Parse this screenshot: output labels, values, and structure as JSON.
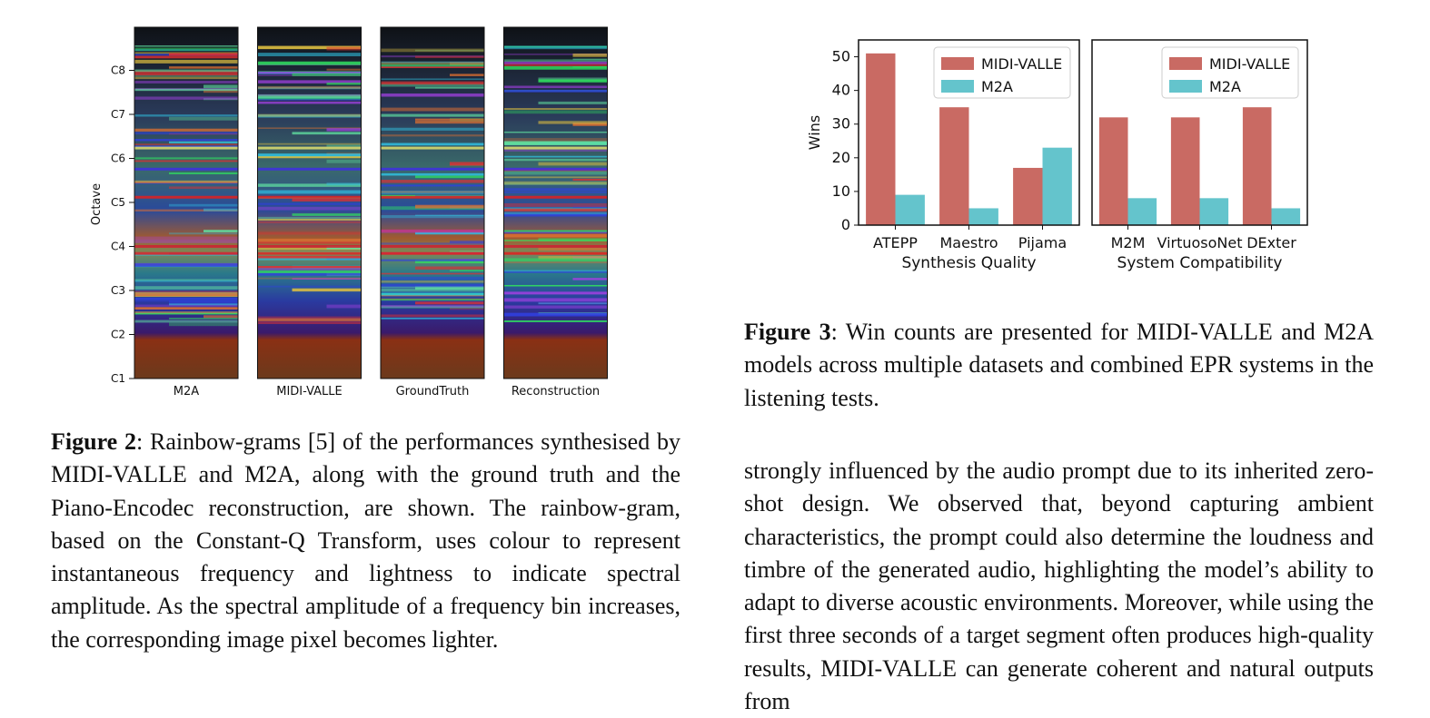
{
  "figure2": {
    "ylabel": "Octave",
    "yticks": [
      "C1",
      "C2",
      "C3",
      "C4",
      "C5",
      "C6",
      "C7",
      "C8"
    ],
    "panels": [
      "M2A",
      "MIDI-VALLE",
      "GroundTruth",
      "Reconstruction"
    ],
    "caption_label": "Figure 2",
    "caption_text": ": Rainbow-grams [5] of the performances synthesised by MIDI-VALLE and M2A, along with the ground truth and the Piano-Encodec reconstruction, are shown. The rainbow-gram, based on the Constant-Q Transform, uses colour to represent instantaneous frequency and lightness to indicate spectral amplitude. As the spectral amplitude of a frequency bin increases, the corresponding image pixel becomes lighter."
  },
  "chart_data": [
    {
      "type": "bar",
      "title": "",
      "xlabel": "Synthesis Quality",
      "ylabel": "Wins",
      "categories": [
        "ATEPP",
        "Maestro",
        "Pijama"
      ],
      "series": [
        {
          "name": "MIDI-VALLE",
          "values": [
            51,
            35,
            17
          ],
          "color": "#c96a63"
        },
        {
          "name": "M2A",
          "values": [
            9,
            5,
            23
          ],
          "color": "#64c4cc"
        }
      ],
      "ylim": [
        0,
        55
      ],
      "yticks": [
        0,
        10,
        20,
        30,
        40,
        50
      ],
      "legend": "top-right"
    },
    {
      "type": "bar",
      "title": "",
      "xlabel": "System Compatibility",
      "ylabel": "",
      "categories": [
        "M2M",
        "VirtuosoNet",
        "DExter"
      ],
      "series": [
        {
          "name": "MIDI-VALLE",
          "values": [
            32,
            32,
            35
          ],
          "color": "#c96a63"
        },
        {
          "name": "M2A",
          "values": [
            8,
            8,
            5
          ],
          "color": "#64c4cc"
        }
      ],
      "ylim": [
        0,
        55
      ],
      "legend": "top-right"
    }
  ],
  "figure3": {
    "caption_label": "Figure 3",
    "caption_text": ": Win counts are presented for MIDI-VALLE and M2A models across multiple datasets and combined EPR systems in the listening tests."
  },
  "body": {
    "paragraph": "strongly influenced by the audio prompt due to its inherited zero-shot design. We observed that, beyond capturing ambient characteristics, the prompt could also determine the loudness and timbre of the generated audio, highlighting the model’s ability to adapt to diverse acoustic environments. Moreover, while using the first three seconds of a target segment often produces high-quality results, MIDI-VALLE can generate coherent and natural outputs from"
  }
}
